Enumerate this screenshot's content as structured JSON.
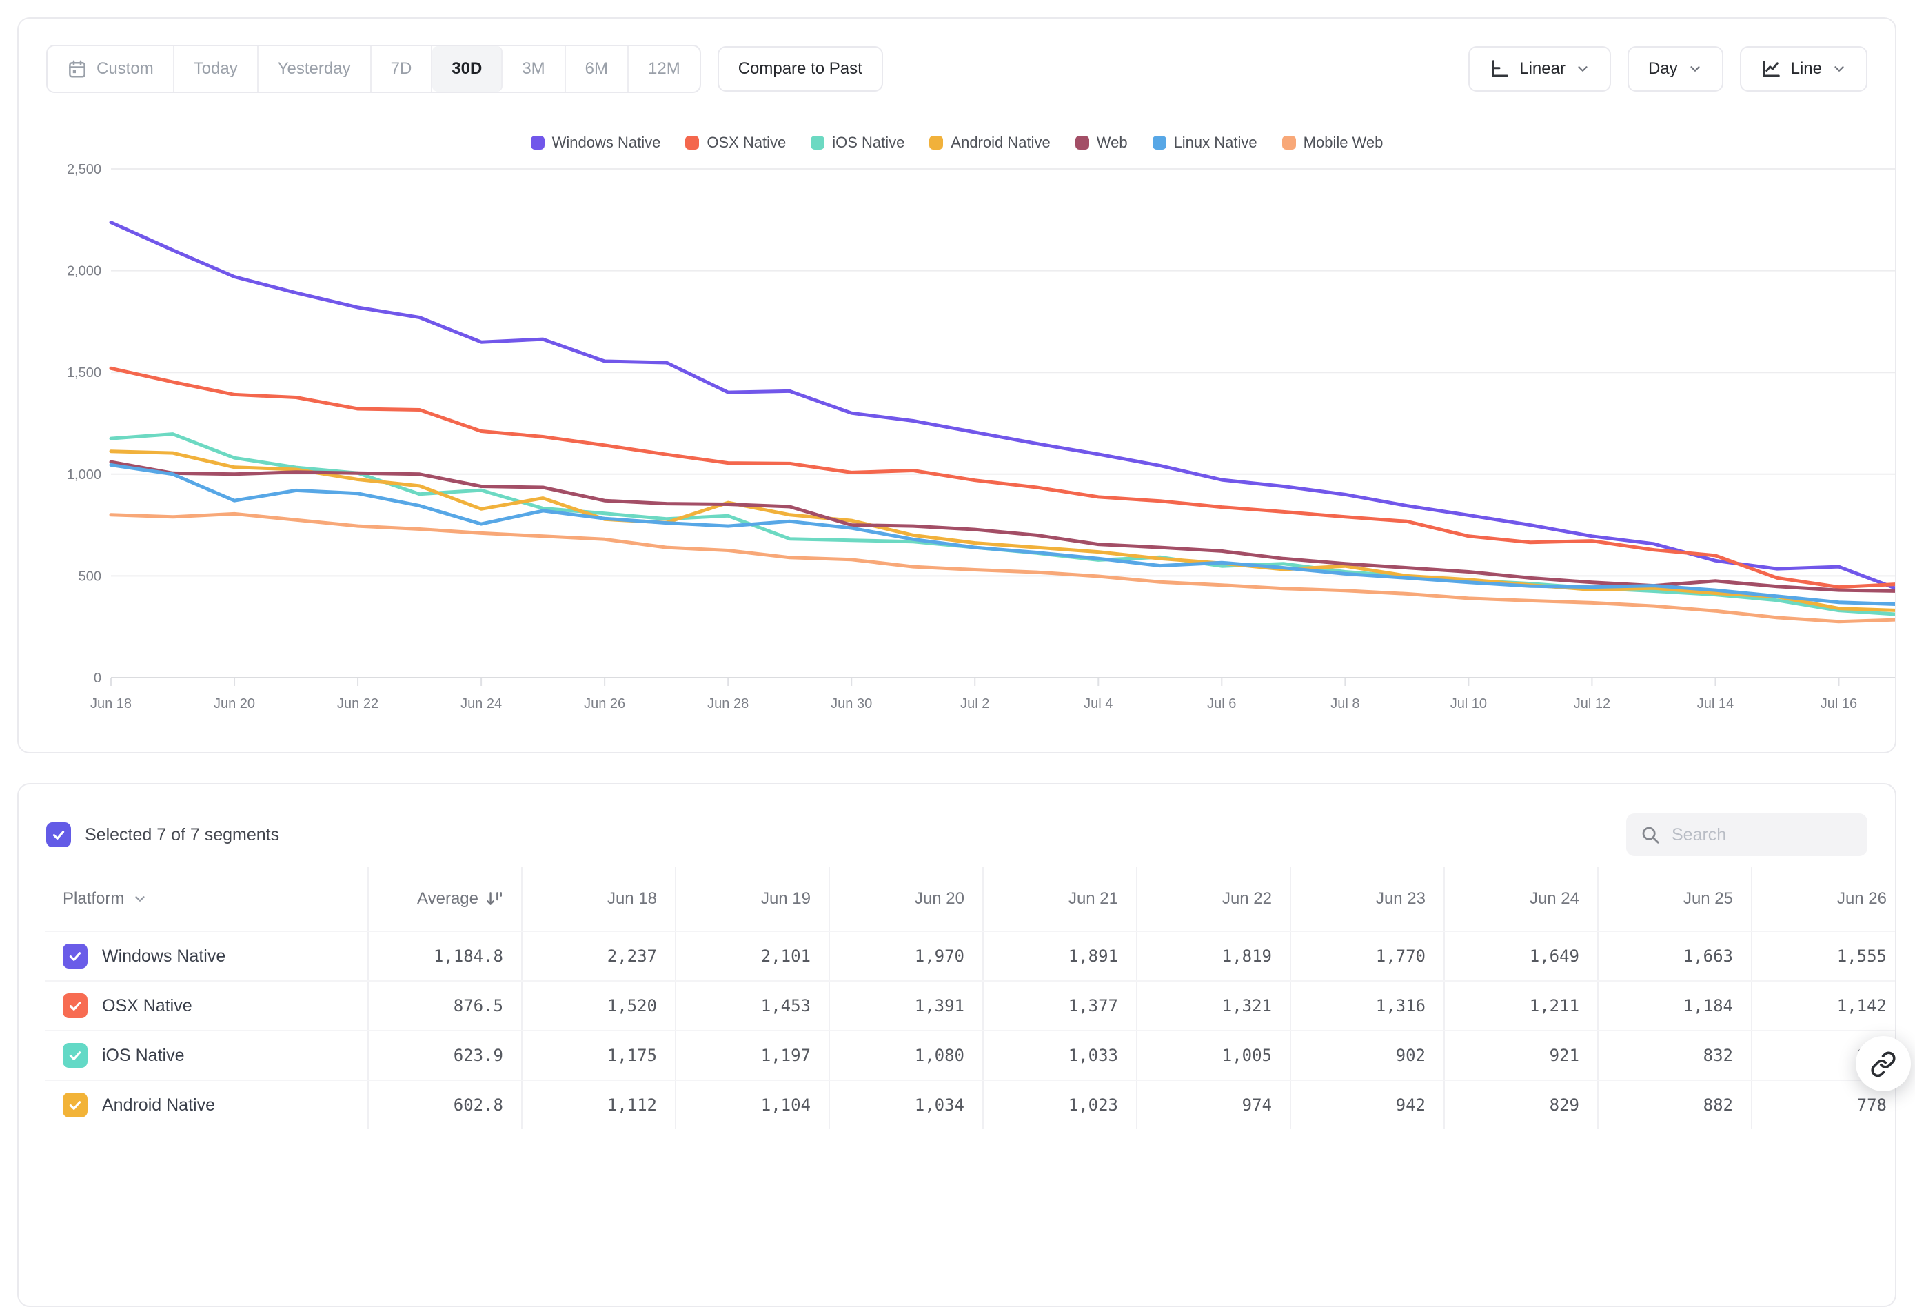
{
  "toolbar": {
    "ranges": [
      "Custom",
      "Today",
      "Yesterday",
      "7D",
      "30D",
      "3M",
      "6M",
      "12M"
    ],
    "active_range": "30D",
    "compare_label": "Compare to Past",
    "scale_label": "Linear",
    "interval_label": "Day",
    "chart_type_label": "Line"
  },
  "chart_data": {
    "type": "line",
    "title": "",
    "xlabel": "",
    "ylabel": "",
    "ylim": [
      0,
      2500
    ],
    "grid": "horizontal",
    "legend_position": "top-center",
    "y_ticks": [
      0,
      500,
      1000,
      1500,
      2000,
      2500
    ],
    "y_tick_labels": [
      "0",
      "500",
      "1,000",
      "1,500",
      "2,000",
      "2,500"
    ],
    "x": [
      "Jun 18",
      "Jun 19",
      "Jun 20",
      "Jun 21",
      "Jun 22",
      "Jun 23",
      "Jun 24",
      "Jun 25",
      "Jun 26",
      "Jun 27",
      "Jun 28",
      "Jun 29",
      "Jun 30",
      "Jul 1",
      "Jul 2",
      "Jul 3",
      "Jul 4",
      "Jul 5",
      "Jul 6",
      "Jul 7",
      "Jul 8",
      "Jul 9",
      "Jul 10",
      "Jul 11",
      "Jul 12",
      "Jul 13",
      "Jul 14",
      "Jul 15",
      "Jul 16",
      "Jul 17"
    ],
    "x_tick_every": 2,
    "series": [
      {
        "name": "Windows Native",
        "color": "#7157EA",
        "values": [
          2237,
          2101,
          1970,
          1891,
          1819,
          1770,
          1649,
          1663,
          1555,
          1548,
          1402,
          1408,
          1300,
          1262,
          1206,
          1150,
          1098,
          1042,
          972,
          940,
          900,
          845,
          798,
          750,
          695,
          658,
          575,
          535,
          545,
          430
        ]
      },
      {
        "name": "OSX Native",
        "color": "#F4674D",
        "values": [
          1520,
          1453,
          1391,
          1377,
          1321,
          1316,
          1211,
          1184,
          1142,
          1097,
          1055,
          1052,
          1008,
          1018,
          970,
          935,
          888,
          868,
          838,
          815,
          790,
          768,
          695,
          665,
          672,
          628,
          600,
          490,
          445,
          460
        ]
      },
      {
        "name": "iOS Native",
        "color": "#6CD9C2",
        "values": [
          1175,
          1197,
          1080,
          1033,
          1005,
          902,
          921,
          832,
          807,
          780,
          795,
          682,
          675,
          668,
          640,
          612,
          578,
          592,
          548,
          560,
          520,
          498,
          478,
          462,
          440,
          425,
          408,
          380,
          330,
          310
        ]
      },
      {
        "name": "Android Native",
        "color": "#F1B13B",
        "values": [
          1112,
          1104,
          1034,
          1023,
          974,
          942,
          829,
          882,
          778,
          762,
          860,
          800,
          772,
          700,
          662,
          640,
          618,
          585,
          562,
          532,
          548,
          500,
          482,
          455,
          432,
          440,
          415,
          398,
          340,
          330
        ]
      },
      {
        "name": "Web",
        "color": "#A34E66",
        "values": [
          1060,
          1005,
          1000,
          1010,
          1005,
          1000,
          940,
          935,
          870,
          855,
          852,
          840,
          750,
          745,
          728,
          700,
          655,
          640,
          622,
          585,
          560,
          540,
          520,
          490,
          468,
          452,
          475,
          448,
          430,
          425
        ]
      },
      {
        "name": "Linux Native",
        "color": "#57A7E6",
        "values": [
          1045,
          1000,
          870,
          920,
          905,
          845,
          755,
          820,
          782,
          760,
          745,
          768,
          735,
          680,
          640,
          615,
          585,
          550,
          565,
          540,
          510,
          490,
          468,
          450,
          445,
          452,
          430,
          400,
          370,
          360
        ]
      },
      {
        "name": "Mobile Web",
        "color": "#F8A878",
        "values": [
          800,
          790,
          805,
          775,
          745,
          730,
          710,
          695,
          680,
          640,
          625,
          590,
          580,
          545,
          530,
          518,
          498,
          470,
          455,
          438,
          428,
          412,
          390,
          378,
          368,
          352,
          328,
          295,
          275,
          285
        ]
      }
    ]
  },
  "table": {
    "selected_summary": "Selected 7 of 7 segments",
    "search_placeholder": "Search",
    "platform_header": "Platform",
    "sorted_column": "Average",
    "columns": [
      "Platform",
      "Average",
      "Jun 18",
      "Jun 19",
      "Jun 20",
      "Jun 21",
      "Jun 22",
      "Jun 23",
      "Jun 24",
      "Jun 25",
      "Jun 26"
    ],
    "rows": [
      {
        "label": "Windows Native",
        "color": "#6A5CE8",
        "checked": true,
        "average": "1,184.8",
        "values": [
          "2,237",
          "2,101",
          "1,970",
          "1,891",
          "1,819",
          "1,770",
          "1,649",
          "1,663",
          "1,555"
        ]
      },
      {
        "label": "OSX Native",
        "color": "#F76C52",
        "checked": true,
        "average": "876.5",
        "values": [
          "1,520",
          "1,453",
          "1,391",
          "1,377",
          "1,321",
          "1,316",
          "1,211",
          "1,184",
          "1,142"
        ]
      },
      {
        "label": "iOS Native",
        "color": "#63D9C6",
        "checked": true,
        "average": "623.9",
        "values": [
          "1,175",
          "1,197",
          "1,080",
          "1,033",
          "1,005",
          "902",
          "921",
          "832",
          "807"
        ]
      },
      {
        "label": "Android Native",
        "color": "#F2B338",
        "checked": true,
        "average": "602.8",
        "values": [
          "1,112",
          "1,104",
          "1,034",
          "1,023",
          "974",
          "942",
          "829",
          "882",
          "778"
        ]
      }
    ]
  }
}
